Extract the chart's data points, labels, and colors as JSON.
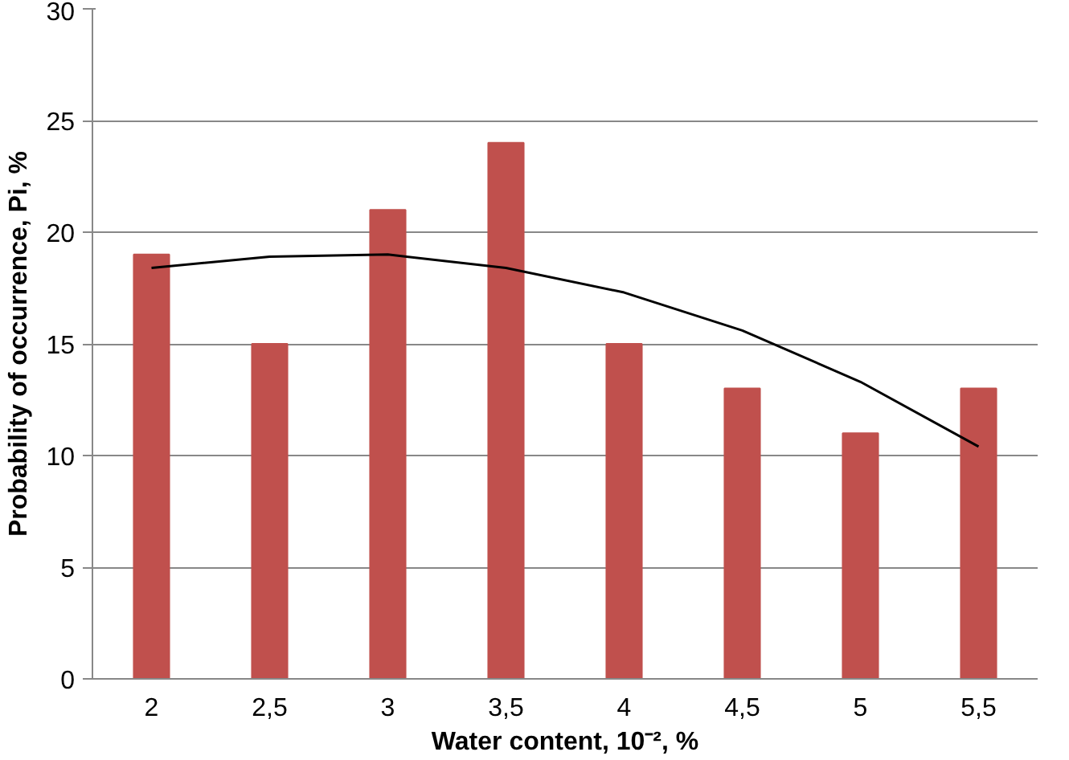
{
  "chart_data": {
    "type": "bar",
    "xlabel": "Water content, 10⁻², %",
    "ylabel": "Probability of occurrence, Pi, %",
    "categories": [
      "2",
      "2,5",
      "3",
      "3,5",
      "4",
      "4,5",
      "5",
      "5,5"
    ],
    "series": [
      {
        "color": "#c0504d",
        "values": [
          19,
          15,
          21,
          24,
          15,
          13,
          11,
          13
        ]
      },
      {
        "type": "line",
        "color": "#000000",
        "x": [
          "2",
          "2,5",
          "3",
          "3,5",
          "4",
          "4,5",
          "5",
          "5,5"
        ],
        "values": [
          18.4,
          18.9,
          19.0,
          18.4,
          17.3,
          15.6,
          13.3,
          10.4
        ]
      }
    ],
    "ylim": [
      0,
      30
    ],
    "yticks": [
      0,
      5,
      10,
      15,
      20,
      25,
      30
    ],
    "grid": "y"
  }
}
